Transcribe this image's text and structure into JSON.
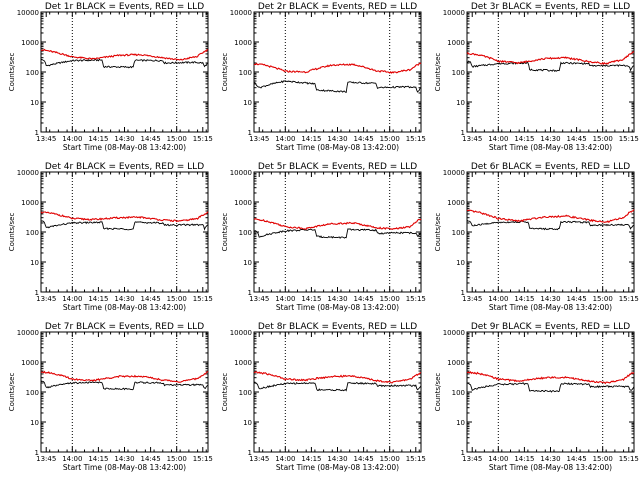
{
  "chart_data": [
    {
      "type": "line",
      "title": "Det 1r BLACK = Events, RED = LLD",
      "xlabel": "Start Time (08-May-08 13:42:00)",
      "ylabel": "Counts/sec",
      "xticks": [
        "13:45",
        "14:00",
        "14:15",
        "14:30",
        "14:45",
        "15:00",
        "15:15"
      ],
      "yticks": [
        "1",
        "10",
        "100",
        "1000",
        "10000"
      ],
      "yscale": "log",
      "ylim": [
        1,
        10000
      ],
      "xlim_minutes": [
        0,
        96
      ],
      "vlines_minutes": [
        18,
        78
      ],
      "series": [
        {
          "color": "#000000",
          "x": [
            0,
            2,
            3,
            18,
            35,
            36,
            53,
            54,
            70,
            71,
            88,
            93,
            94,
            96
          ],
          "y": [
            260,
            240,
            160,
            240,
            250,
            150,
            145,
            245,
            240,
            200,
            210,
            200,
            150,
            200
          ]
        },
        {
          "color": "#e00000",
          "x": [
            0,
            6,
            18,
            30,
            45,
            57,
            70,
            80,
            90,
            96
          ],
          "y": [
            560,
            480,
            320,
            270,
            360,
            380,
            300,
            250,
            330,
            560
          ]
        }
      ]
    },
    {
      "type": "line",
      "title": "Det 2r BLACK = Events, RED = LLD",
      "xlabel": "Start Time (08-May-08 13:42:00)",
      "ylabel": "Counts/sec",
      "xticks": [
        "13:45",
        "14:00",
        "14:15",
        "14:30",
        "14:45",
        "15:00",
        "15:15"
      ],
      "yticks": [
        "1",
        "10",
        "100",
        "1000",
        "10000"
      ],
      "yscale": "log",
      "ylim": [
        1,
        10000
      ],
      "xlim_minutes": [
        0,
        96
      ],
      "vlines_minutes": [
        18,
        78
      ],
      "series": [
        {
          "color": "#000000",
          "x": [
            0,
            2,
            3,
            18,
            35,
            36,
            53,
            54,
            70,
            71,
            88,
            93,
            94,
            96
          ],
          "y": [
            45,
            35,
            30,
            50,
            40,
            25,
            22,
            45,
            42,
            30,
            32,
            30,
            22,
            30
          ]
        },
        {
          "color": "#e00000",
          "x": [
            0,
            6,
            18,
            30,
            45,
            57,
            70,
            80,
            90,
            96
          ],
          "y": [
            190,
            170,
            105,
            100,
            170,
            180,
            110,
            95,
            120,
            200
          ]
        }
      ]
    },
    {
      "type": "line",
      "title": "Det 3r BLACK = Events, RED = LLD",
      "xlabel": "Start Time (08-May-08 13:42:00)",
      "ylabel": "Counts/sec",
      "xticks": [
        "13:45",
        "14:00",
        "14:15",
        "14:30",
        "14:45",
        "15:00",
        "15:15"
      ],
      "yticks": [
        "1",
        "10",
        "100",
        "1000",
        "10000"
      ],
      "yscale": "log",
      "ylim": [
        1,
        10000
      ],
      "xlim_minutes": [
        0,
        96
      ],
      "vlines_minutes": [
        18,
        78
      ],
      "series": [
        {
          "color": "#000000",
          "x": [
            0,
            2,
            3,
            18,
            35,
            36,
            53,
            54,
            70,
            71,
            88,
            93,
            94,
            96
          ],
          "y": [
            230,
            210,
            150,
            190,
            200,
            120,
            110,
            200,
            190,
            160,
            165,
            160,
            120,
            160
          ]
        },
        {
          "color": "#e00000",
          "x": [
            0,
            6,
            18,
            30,
            45,
            57,
            70,
            80,
            90,
            96
          ],
          "y": [
            420,
            380,
            230,
            200,
            280,
            300,
            220,
            190,
            260,
            480
          ]
        }
      ]
    },
    {
      "type": "line",
      "title": "Det 4r BLACK = Events, RED = LLD",
      "xlabel": "Start Time (08-May-08 13:42:00)",
      "ylabel": "Counts/sec",
      "xticks": [
        "13:45",
        "14:00",
        "14:15",
        "14:30",
        "14:45",
        "15:00",
        "15:15"
      ],
      "yticks": [
        "1",
        "10",
        "100",
        "1000",
        "10000"
      ],
      "yscale": "log",
      "ylim": [
        1,
        10000
      ],
      "xlim_minutes": [
        0,
        96
      ],
      "vlines_minutes": [
        18,
        78
      ],
      "series": [
        {
          "color": "#000000",
          "x": [
            0,
            2,
            3,
            18,
            35,
            36,
            53,
            54,
            70,
            71,
            88,
            93,
            94,
            96
          ],
          "y": [
            230,
            210,
            140,
            200,
            210,
            130,
            125,
            210,
            200,
            170,
            175,
            170,
            130,
            170
          ]
        },
        {
          "color": "#e00000",
          "x": [
            0,
            6,
            18,
            30,
            45,
            57,
            70,
            80,
            90,
            96
          ],
          "y": [
            460,
            420,
            280,
            260,
            300,
            310,
            250,
            230,
            280,
            460
          ]
        }
      ]
    },
    {
      "type": "line",
      "title": "Det 5r BLACK = Events, RED = LLD",
      "xlabel": "Start Time (08-May-08 13:42:00)",
      "ylabel": "Counts/sec",
      "xticks": [
        "13:45",
        "14:00",
        "14:15",
        "14:30",
        "14:45",
        "15:00",
        "15:15"
      ],
      "yticks": [
        "1",
        "10",
        "100",
        "1000",
        "10000"
      ],
      "yscale": "log",
      "ylim": [
        1,
        10000
      ],
      "xlim_minutes": [
        0,
        96
      ],
      "vlines_minutes": [
        18,
        78
      ],
      "series": [
        {
          "color": "#000000",
          "x": [
            0,
            2,
            3,
            18,
            35,
            36,
            53,
            54,
            70,
            71,
            88,
            93,
            94,
            96
          ],
          "y": [
            110,
            100,
            70,
            110,
            120,
            70,
            65,
            120,
            115,
            90,
            95,
            90,
            70,
            90
          ]
        },
        {
          "color": "#e00000",
          "x": [
            0,
            6,
            18,
            30,
            45,
            57,
            70,
            80,
            90,
            96
          ],
          "y": [
            270,
            240,
            150,
            130,
            190,
            200,
            140,
            125,
            150,
            280
          ]
        }
      ]
    },
    {
      "type": "line",
      "title": "Det 6r BLACK = Events, RED = LLD",
      "xlabel": "Start Time (08-May-08 13:42:00)",
      "ylabel": "Counts/sec",
      "xticks": [
        "13:45",
        "14:00",
        "14:15",
        "14:30",
        "14:45",
        "15:00",
        "15:15"
      ],
      "yticks": [
        "1",
        "10",
        "100",
        "1000",
        "10000"
      ],
      "yscale": "log",
      "ylim": [
        1,
        10000
      ],
      "xlim_minutes": [
        0,
        96
      ],
      "vlines_minutes": [
        18,
        78
      ],
      "series": [
        {
          "color": "#000000",
          "x": [
            0,
            2,
            3,
            18,
            35,
            36,
            53,
            54,
            70,
            71,
            88,
            93,
            94,
            96
          ],
          "y": [
            240,
            220,
            160,
            210,
            220,
            130,
            125,
            220,
            210,
            170,
            175,
            170,
            130,
            170
          ]
        },
        {
          "color": "#e00000",
          "x": [
            0,
            6,
            18,
            30,
            45,
            57,
            70,
            80,
            90,
            96
          ],
          "y": [
            520,
            460,
            280,
            230,
            320,
            340,
            250,
            210,
            300,
            560
          ]
        }
      ]
    },
    {
      "type": "line",
      "title": "Det 7r BLACK = Events, RED = LLD",
      "xlabel": "Start Time (08-May-08 13:42:00)",
      "ylabel": "Counts/sec",
      "xticks": [
        "13:45",
        "14:00",
        "14:15",
        "14:30",
        "14:45",
        "15:00",
        "15:15"
      ],
      "yticks": [
        "1",
        "10",
        "100",
        "1000",
        "10000"
      ],
      "yscale": "log",
      "ylim": [
        1,
        10000
      ],
      "xlim_minutes": [
        0,
        96
      ],
      "vlines_minutes": [
        18,
        78
      ],
      "series": [
        {
          "color": "#000000",
          "x": [
            0,
            2,
            3,
            18,
            35,
            36,
            53,
            54,
            70,
            71,
            88,
            93,
            94,
            96
          ],
          "y": [
            230,
            210,
            140,
            200,
            210,
            130,
            125,
            210,
            200,
            170,
            175,
            170,
            130,
            170
          ]
        },
        {
          "color": "#e00000",
          "x": [
            0,
            6,
            18,
            30,
            45,
            57,
            70,
            80,
            90,
            96
          ],
          "y": [
            480,
            430,
            270,
            240,
            330,
            340,
            250,
            220,
            280,
            460
          ]
        }
      ]
    },
    {
      "type": "line",
      "title": "Det 8r BLACK = Events, RED = LLD",
      "xlabel": "Start Time (08-May-08 13:42:00)",
      "ylabel": "Counts/sec",
      "xticks": [
        "13:45",
        "14:00",
        "14:15",
        "14:30",
        "14:45",
        "15:00",
        "15:15"
      ],
      "yticks": [
        "1",
        "10",
        "100",
        "1000",
        "10000"
      ],
      "yscale": "log",
      "ylim": [
        1,
        10000
      ],
      "xlim_minutes": [
        0,
        96
      ],
      "vlines_minutes": [
        18,
        78
      ],
      "series": [
        {
          "color": "#000000",
          "x": [
            0,
            2,
            3,
            18,
            35,
            36,
            53,
            54,
            70,
            71,
            88,
            93,
            94,
            96
          ],
          "y": [
            210,
            190,
            130,
            190,
            200,
            120,
            115,
            200,
            190,
            160,
            165,
            160,
            120,
            160
          ]
        },
        {
          "color": "#e00000",
          "x": [
            0,
            6,
            18,
            30,
            45,
            57,
            70,
            80,
            90,
            96
          ],
          "y": [
            460,
            420,
            270,
            250,
            330,
            340,
            240,
            210,
            270,
            440
          ]
        }
      ]
    },
    {
      "type": "line",
      "title": "Det 9r BLACK = Events, RED = LLD",
      "xlabel": "Start Time (08-May-08 13:42:00)",
      "ylabel": "Counts/sec",
      "xticks": [
        "13:45",
        "14:00",
        "14:15",
        "14:30",
        "14:45",
        "15:00",
        "15:15"
      ],
      "yticks": [
        "1",
        "10",
        "100",
        "1000",
        "10000"
      ],
      "yscale": "log",
      "ylim": [
        1,
        10000
      ],
      "xlim_minutes": [
        0,
        96
      ],
      "vlines_minutes": [
        18,
        78
      ],
      "series": [
        {
          "color": "#000000",
          "x": [
            0,
            2,
            3,
            18,
            35,
            36,
            53,
            54,
            70,
            71,
            88,
            93,
            94,
            96
          ],
          "y": [
            200,
            180,
            120,
            180,
            190,
            110,
            105,
            190,
            180,
            150,
            155,
            150,
            110,
            150
          ]
        },
        {
          "color": "#e00000",
          "x": [
            0,
            6,
            18,
            30,
            45,
            57,
            70,
            80,
            90,
            96
          ],
          "y": [
            460,
            420,
            270,
            230,
            300,
            310,
            230,
            200,
            260,
            460
          ]
        }
      ]
    }
  ]
}
